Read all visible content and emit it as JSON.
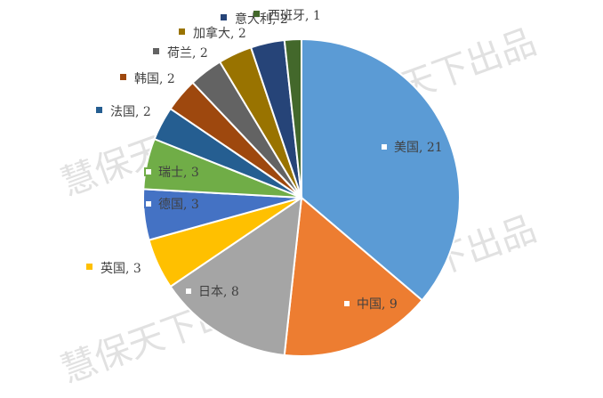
{
  "chart_data": {
    "type": "pie",
    "title": "",
    "slices": [
      {
        "label": "美国",
        "value": 21,
        "color": "#5b9bd5"
      },
      {
        "label": "中国",
        "value": 9,
        "color": "#ed7d31"
      },
      {
        "label": "日本",
        "value": 8,
        "color": "#a5a5a5"
      },
      {
        "label": "英国",
        "value": 3,
        "color": "#ffc000"
      },
      {
        "label": "德国",
        "value": 3,
        "color": "#4472c4"
      },
      {
        "label": "瑞士",
        "value": 3,
        "color": "#70ad47"
      },
      {
        "label": "法国",
        "value": 2,
        "color": "#255e91"
      },
      {
        "label": "韩国",
        "value": 2,
        "color": "#9e480e"
      },
      {
        "label": "荷兰",
        "value": 2,
        "color": "#636363"
      },
      {
        "label": "加拿大",
        "value": 2,
        "color": "#997300"
      },
      {
        "label": "意大利",
        "value": 2,
        "color": "#264478"
      },
      {
        "label": "西班牙",
        "value": 1,
        "color": "#43682b"
      }
    ],
    "label_format": "{label}, {value}",
    "data_labels": [
      "美国, 21",
      "中国, 9",
      "日本, 8",
      "英国, 3",
      "德国, 3",
      "瑞士, 3",
      "法国, 2",
      "韩国, 2",
      "荷兰, 2",
      "加拿大, 2",
      "意大利, 2",
      "西班牙, 1"
    ],
    "start_angle": "12 o'clock",
    "direction": "clockwise",
    "legend": "none"
  },
  "watermark": {
    "text": "慧保天下出品"
  }
}
